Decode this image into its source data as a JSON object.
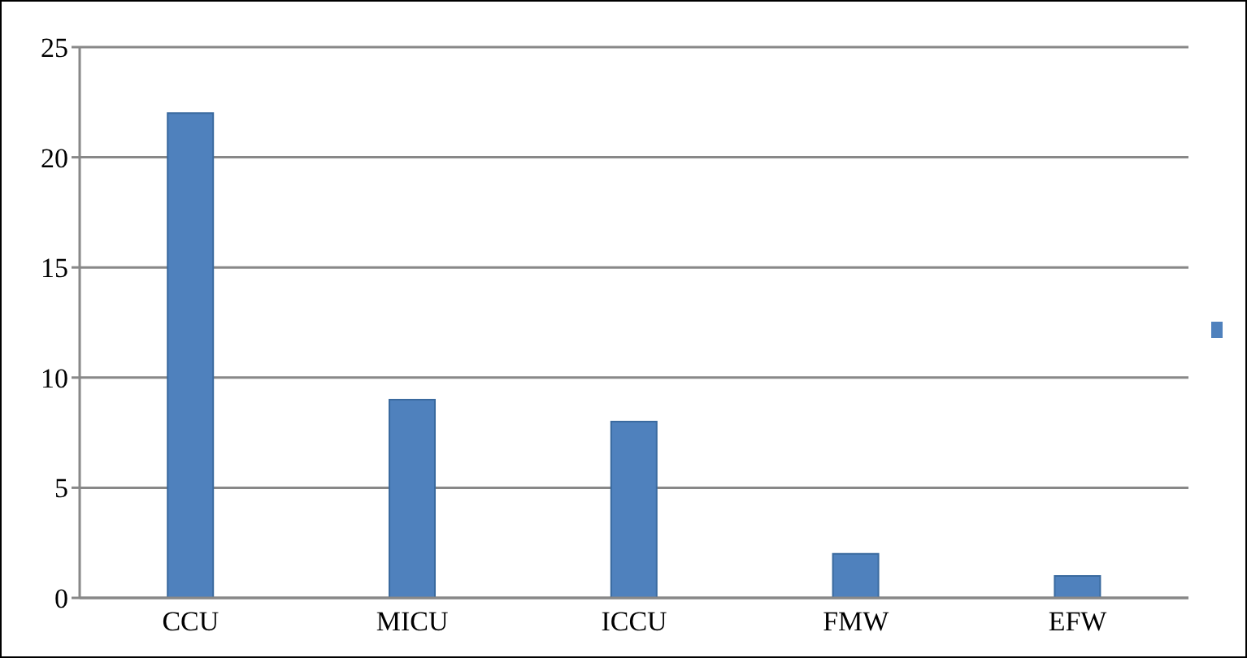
{
  "chart_data": {
    "type": "bar",
    "categories": [
      "CCU",
      "MICU",
      "ICCU",
      "FMW",
      "EFW"
    ],
    "series": [
      {
        "color": "#4f81bd",
        "values": [
          22,
          9,
          8,
          2,
          1
        ]
      }
    ],
    "ylim": [
      0,
      25
    ],
    "yticks": [
      0,
      5,
      10,
      15,
      20,
      25
    ],
    "grid": "y"
  }
}
